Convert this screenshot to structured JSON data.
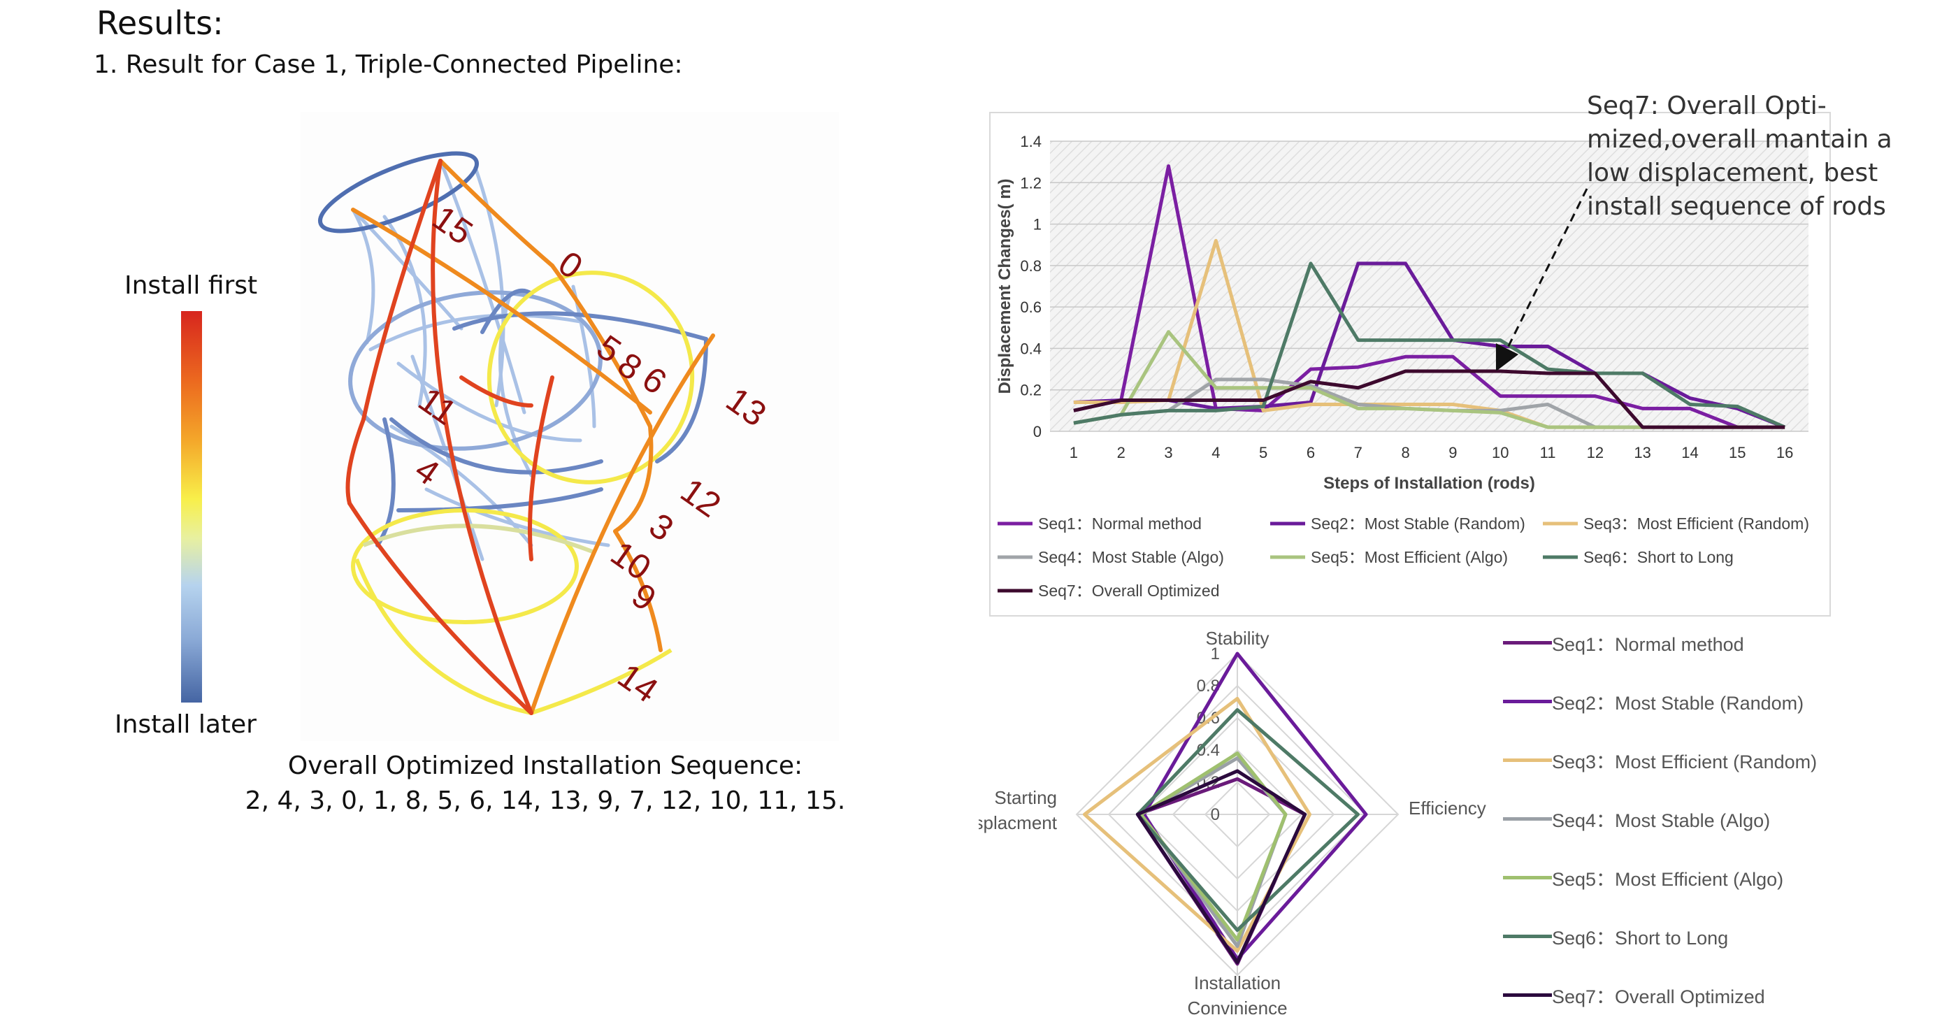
{
  "header": {
    "results_title": "Results:",
    "case_title": "1. Result for Case 1, Triple-Connected Pipeline:"
  },
  "colorbar": {
    "top_label": "Install first",
    "bottom_label": "Install later"
  },
  "sketch": {
    "rod_labels": [
      "15",
      "0",
      "5",
      "8",
      "6",
      "13",
      "11",
      "4",
      "12",
      "3",
      "10",
      "9",
      "14"
    ]
  },
  "sequence": {
    "title": "Overall Optimized Installation Sequence:",
    "order": "2, 4, 3, 0, 1, 8, 5, 6, 14, 13, 9, 7, 12, 10, 11, 15."
  },
  "annotation": {
    "text": [
      "Seq7: Overall Opti-",
      "mized,overall mantain a",
      "low displacement, best",
      "install sequence of rods"
    ]
  },
  "chart_data": [
    {
      "type": "line",
      "title": "",
      "xlabel": "Steps of Installation (rods)",
      "ylabel": "Displacement Changes( m)",
      "x": [
        1,
        2,
        3,
        4,
        5,
        6,
        7,
        8,
        9,
        10,
        11,
        12,
        13,
        14,
        15,
        16
      ],
      "y_ticks": [
        "0",
        "0.2",
        "0.4",
        "0.6",
        "0.8",
        "1",
        "1.2",
        "1.4"
      ],
      "ylim": [
        0,
        1.4
      ],
      "grid": true,
      "legend_position": "bottom",
      "series": [
        {
          "name": "Seq1：Normal method",
          "color": "#7b1fa2",
          "values": [
            0.1,
            0.15,
            1.28,
            0.11,
            0.1,
            0.3,
            0.31,
            0.36,
            0.36,
            0.17,
            0.17,
            0.17,
            0.11,
            0.11,
            0.02,
            0.02
          ]
        },
        {
          "name": "Seq2：Most Stable (Random)",
          "color": "#6a1b9a",
          "values": [
            0.14,
            0.15,
            0.15,
            0.11,
            0.12,
            0.14,
            0.81,
            0.81,
            0.44,
            0.41,
            0.41,
            0.28,
            0.28,
            0.16,
            0.11,
            0.02
          ]
        },
        {
          "name": "Seq3：Most Efficient (Random)",
          "color": "#e6c07a",
          "values": [
            0.14,
            0.14,
            0.15,
            0.92,
            0.1,
            0.13,
            0.13,
            0.13,
            0.13,
            0.1,
            0.02,
            0.02,
            0.02,
            0.02,
            0.02,
            0.02
          ]
        },
        {
          "name": "Seq4：Most Stable (Algo)",
          "color": "#a0a4a8",
          "values": [
            0.04,
            0.08,
            0.1,
            0.25,
            0.25,
            0.22,
            0.13,
            0.11,
            0.1,
            0.1,
            0.13,
            0.02,
            0.02,
            0.02,
            0.02,
            0.02
          ]
        },
        {
          "name": "Seq5：Most Efficient (Algo)",
          "color": "#a9c47f",
          "values": [
            0.04,
            0.08,
            0.48,
            0.21,
            0.21,
            0.21,
            0.11,
            0.11,
            0.1,
            0.09,
            0.02,
            0.02,
            0.02,
            0.02,
            0.02,
            0.02
          ]
        },
        {
          "name": "Seq6：Short to Long",
          "color": "#4e7a66",
          "values": [
            0.04,
            0.08,
            0.1,
            0.1,
            0.12,
            0.81,
            0.44,
            0.44,
            0.44,
            0.44,
            0.3,
            0.28,
            0.28,
            0.13,
            0.12,
            0.02
          ]
        },
        {
          "name": "Seq7：Overall Optimized",
          "color": "#3d0a2e",
          "values": [
            0.1,
            0.15,
            0.15,
            0.15,
            0.15,
            0.24,
            0.21,
            0.29,
            0.29,
            0.29,
            0.28,
            0.28,
            0.02,
            0.02,
            0.02,
            0.02
          ]
        }
      ]
    },
    {
      "type": "radar",
      "axes": [
        "Stability",
        "Efficiency",
        "Installation Convinience",
        "Starting Displacment"
      ],
      "r_ticks": [
        "0",
        "0.2",
        "0.4",
        "0.6",
        "0.8",
        "1"
      ],
      "rlim": [
        0,
        1
      ],
      "legend_position": "right",
      "series": [
        {
          "name": "Seq1：Normal method",
          "color": "#6a1b7a",
          "values": [
            0.22,
            0.42,
            0.93,
            0.62
          ]
        },
        {
          "name": "Seq2：Most Stable (Random)",
          "color": "#6a1b9a",
          "values": [
            1.0,
            0.8,
            0.9,
            0.58
          ]
        },
        {
          "name": "Seq3：Most Efficient (Random)",
          "color": "#e6c07a",
          "values": [
            0.72,
            0.45,
            0.85,
            0.95
          ]
        },
        {
          "name": "Seq4：Most Stable (Algo)",
          "color": "#9aa0a6",
          "values": [
            0.35,
            0.3,
            0.82,
            0.6
          ]
        },
        {
          "name": "Seq5：Most Efficient (Algo)",
          "color": "#9fc06f",
          "values": [
            0.38,
            0.3,
            0.78,
            0.6
          ]
        },
        {
          "name": "Seq6：Short to Long",
          "color": "#4e7a66",
          "values": [
            0.65,
            0.75,
            0.72,
            0.62
          ]
        },
        {
          "name": "Seq7：Overall Optimized",
          "color": "#2b0a3d",
          "values": [
            0.27,
            0.42,
            0.92,
            0.62
          ]
        }
      ]
    }
  ]
}
